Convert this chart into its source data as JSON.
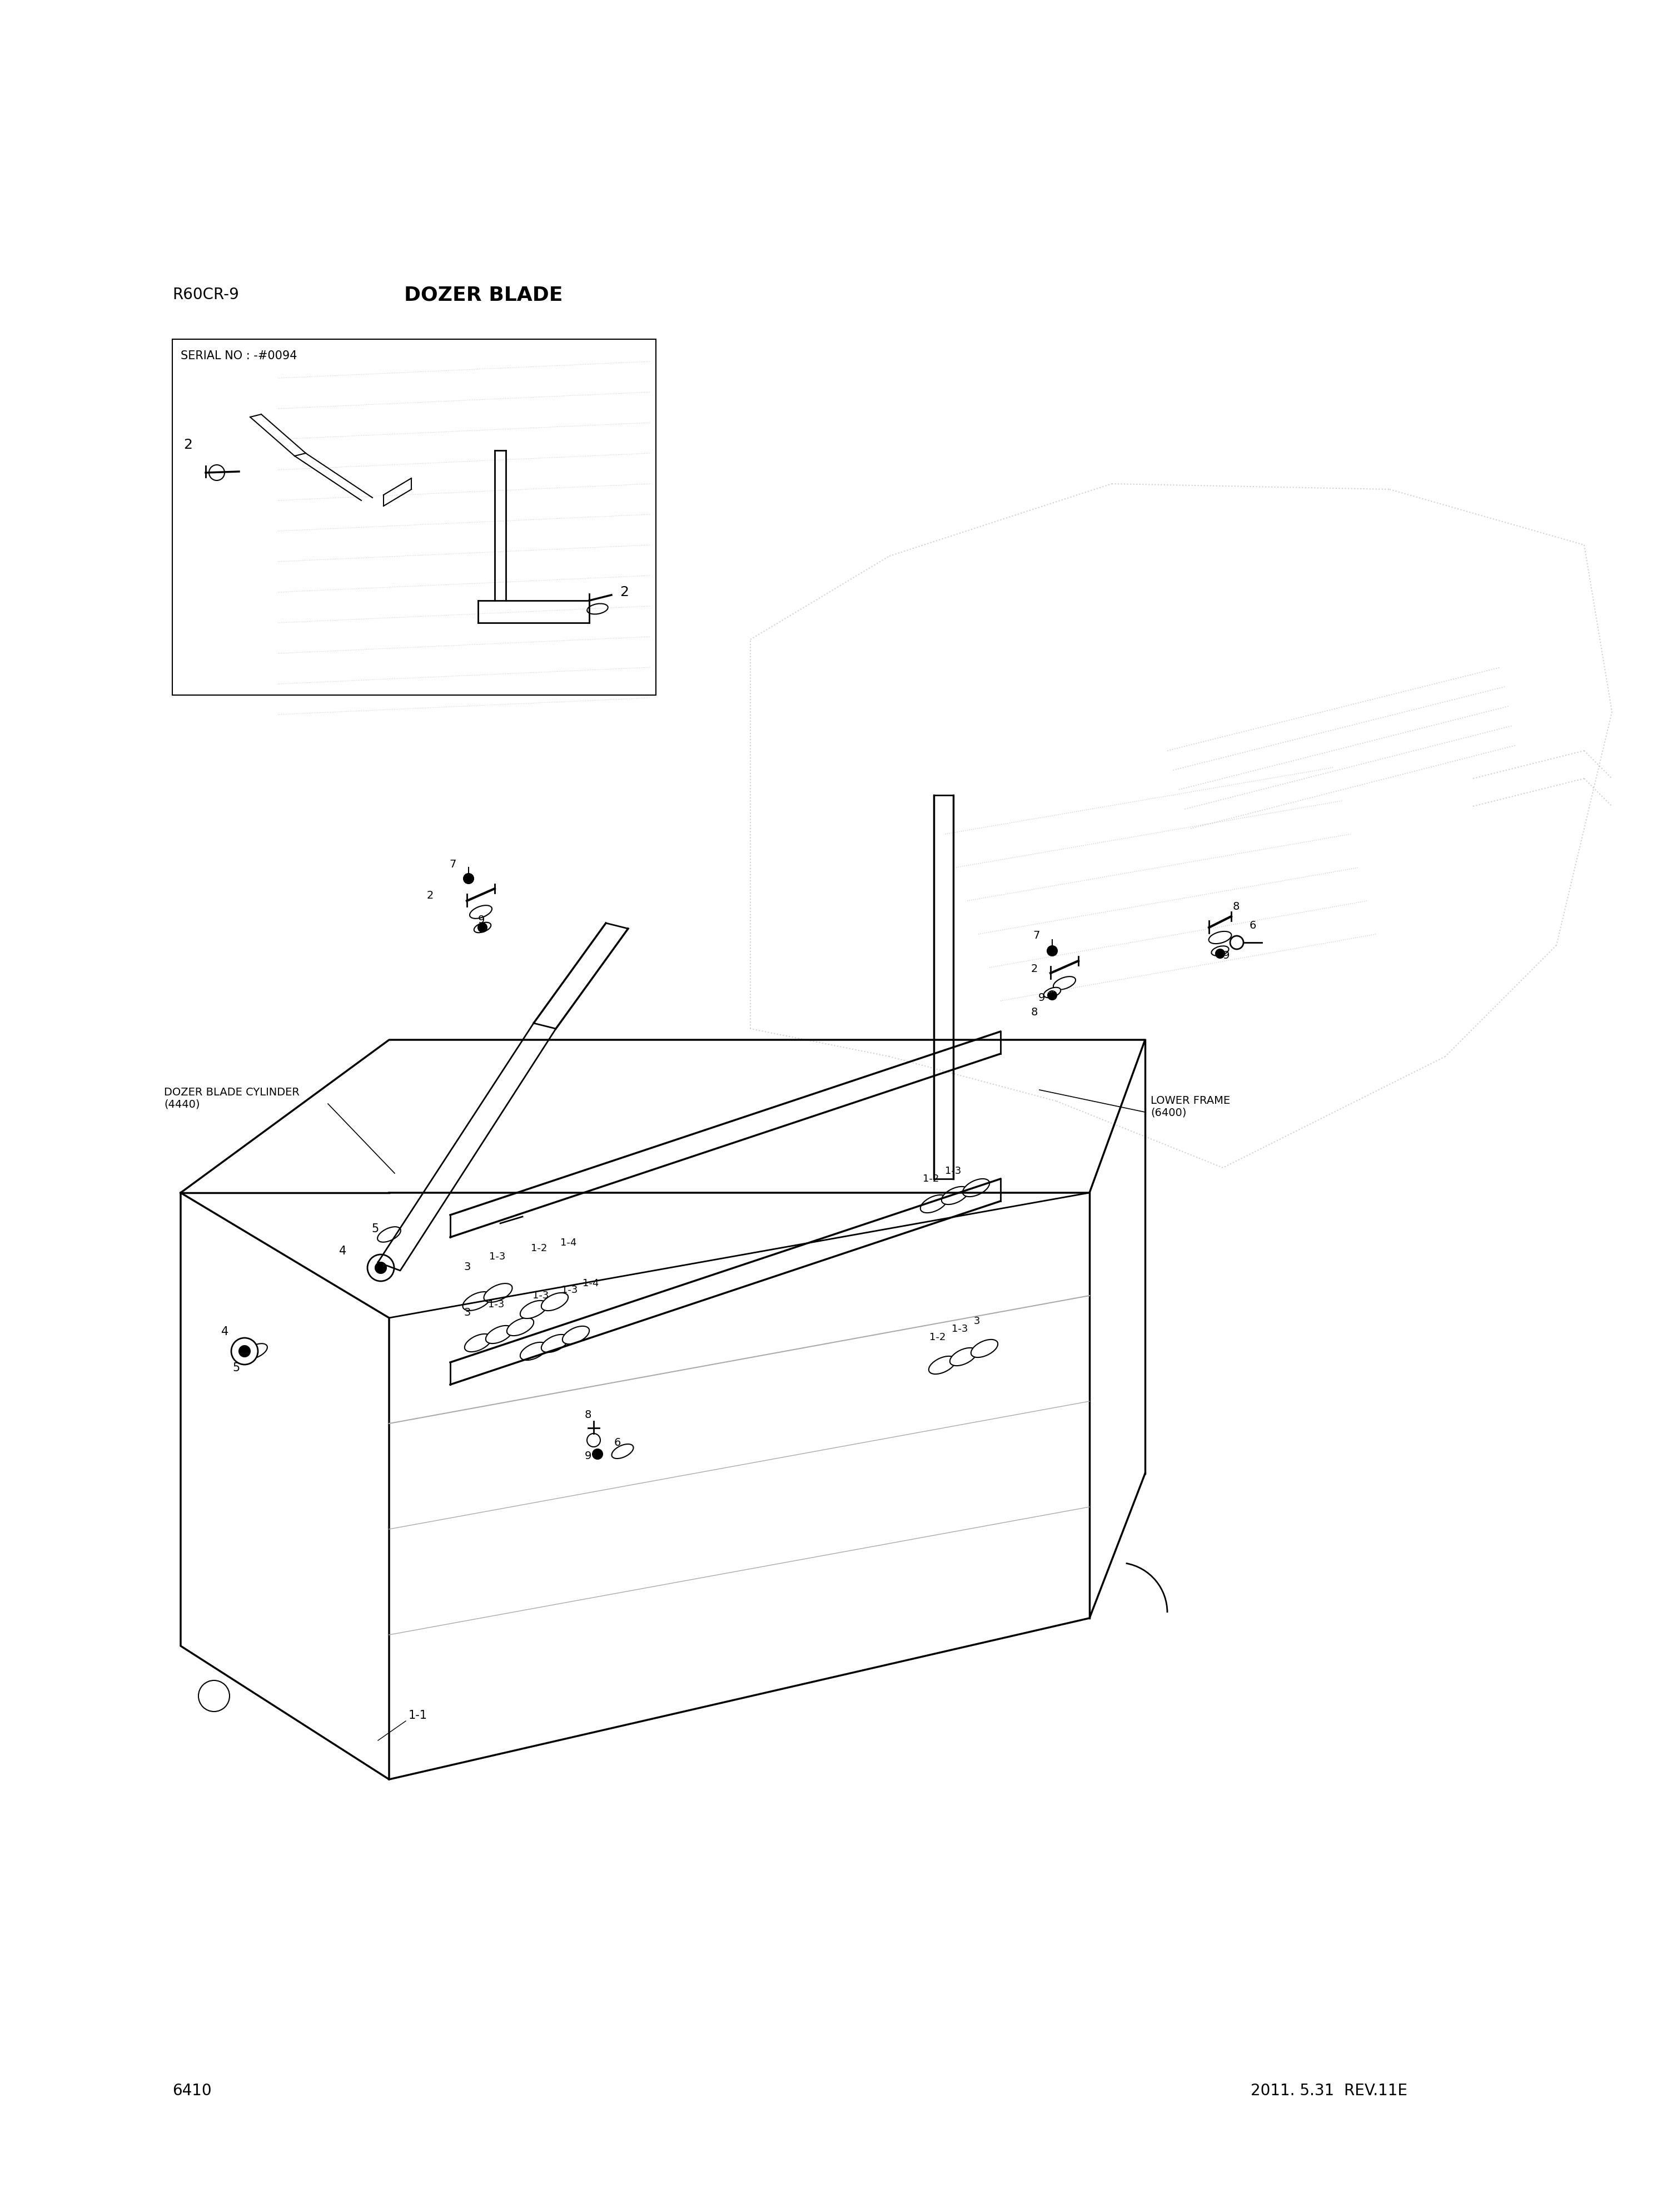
{
  "title": "DOZER BLADE",
  "model": "R60CR-9",
  "part_number": "6410",
  "date_rev": "2011. 5.31  REV.11E",
  "bg_color": "#ffffff",
  "line_color": "#000000",
  "light_line_color": "#aaaaaa",
  "dotted_color": "#bbbbbb",
  "font_color": "#000000",
  "serial_note": "SERIAL NO : -#0094",
  "dozer_blade_cylinder_label": "DOZER BLADE CYLINDER\n(4440)",
  "lower_frame_label": "LOWER FRAME\n(6400)"
}
